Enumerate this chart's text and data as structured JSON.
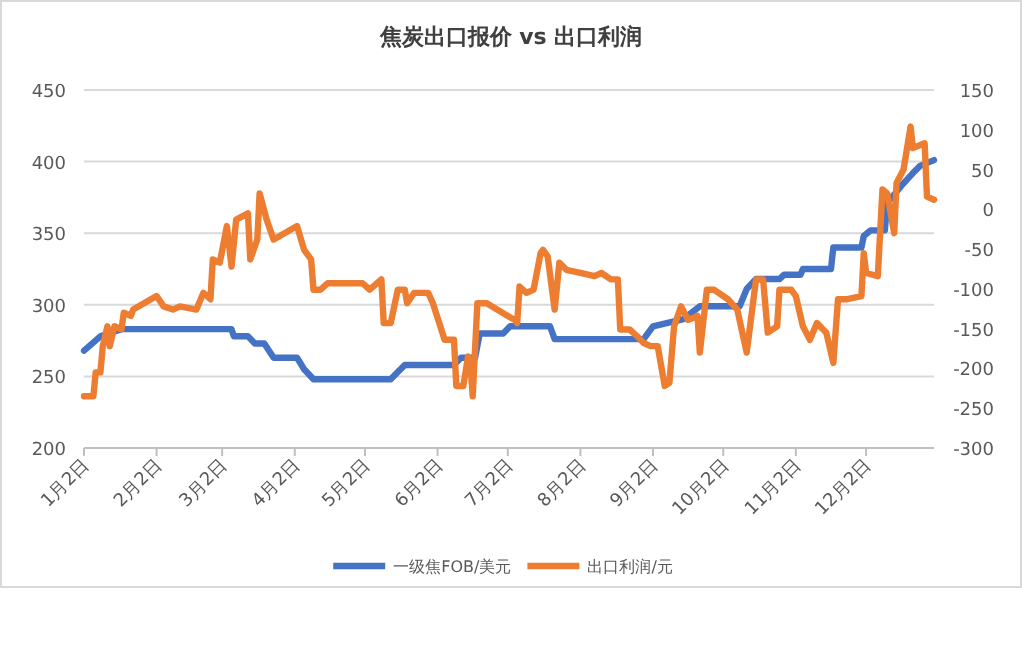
{
  "chart_data": {
    "type": "line",
    "title": "焦炭出口报价 vs 出口利润",
    "xlim": [
      "--01-02",
      "--12-31"
    ],
    "xticks": [
      {
        "value": "--01-02",
        "label": "1月2日"
      },
      {
        "value": "--02-02",
        "label": "2月2日"
      },
      {
        "value": "--03-02",
        "label": "3月2日"
      },
      {
        "value": "--04-02",
        "label": "4月2日"
      },
      {
        "value": "--05-02",
        "label": "5月2日"
      },
      {
        "value": "--06-02",
        "label": "6月2日"
      },
      {
        "value": "--07-02",
        "label": "7月2日"
      },
      {
        "value": "--08-02",
        "label": "8月2日"
      },
      {
        "value": "--09-02",
        "label": "9月2日"
      },
      {
        "value": "--10-02",
        "label": "10月2日"
      },
      {
        "value": "--11-02",
        "label": "11月2日"
      },
      {
        "value": "--12-02",
        "label": "12月2日"
      }
    ],
    "ylim": [
      200,
      450
    ],
    "yticks": [
      200,
      250,
      300,
      350,
      400,
      450
    ],
    "y2lim": [
      -300,
      150
    ],
    "y2ticks": [
      -300,
      -250,
      -200,
      -150,
      -100,
      -50,
      0,
      50,
      100,
      150
    ],
    "grid": "y",
    "legend": "bottom",
    "line_style": "solid",
    "series": [
      {
        "name": "一级焦FOB/美元",
        "color": "#4472c4",
        "axis": "y",
        "x": [
          "--01-02",
          "--01-09",
          "--01-18",
          "--03-06",
          "--03-07",
          "--03-13",
          "--03-16",
          "--03-20",
          "--03-24",
          "--04-03",
          "--04-06",
          "--04-10",
          "--05-13",
          "--05-16",
          "--05-19",
          "--06-09",
          "--06-12",
          "--06-18",
          "--06-20",
          "--06-30",
          "--07-03",
          "--07-20",
          "--07-22",
          "--08-29",
          "--09-02",
          "--09-15",
          "--09-22",
          "--10-09",
          "--10-12",
          "--10-16",
          "--10-26",
          "--10-28",
          "--11-04",
          "--11-05",
          "--11-17",
          "--11-18",
          "--11-30",
          "--12-01",
          "--12-04",
          "--12-10",
          "--12-11",
          "--12-17",
          "--12-22",
          "--12-25",
          "--12-31"
        ],
        "values": [
          268,
          278,
          283,
          283,
          278,
          278,
          273,
          273,
          263,
          263,
          255,
          248,
          248,
          253,
          258,
          258,
          263,
          263,
          280,
          280,
          285,
          285,
          276,
          276,
          285,
          290,
          299,
          299,
          311,
          318,
          318,
          321,
          321,
          325,
          325,
          340,
          340,
          348,
          352,
          352,
          371,
          383,
          392,
          397,
          401
        ]
      },
      {
        "name": "出口利润/元",
        "color": "#ed7d31",
        "axis": "y2",
        "x": [
          "--01-02",
          "--01-06",
          "--01-07",
          "--01-09",
          "--01-10",
          "--01-12",
          "--01-13",
          "--01-15",
          "--01-18",
          "--01-19",
          "--01-22",
          "--01-23",
          "--02-02",
          "--02-05",
          "--02-09",
          "--02-12",
          "--02-19",
          "--02-22",
          "--02-25",
          "--02-26",
          "--03-01",
          "--03-04",
          "--03-06",
          "--03-08",
          "--03-13",
          "--03-14",
          "--03-17",
          "--03-18",
          "--03-21",
          "--03-24",
          "--04-03",
          "--04-06",
          "--04-09",
          "--04-10",
          "--04-13",
          "--04-16",
          "--05-01",
          "--05-04",
          "--05-09",
          "--05-10",
          "--05-13",
          "--05-16",
          "--05-19",
          "--05-20",
          "--05-23",
          "--05-29",
          "--05-31",
          "--06-05",
          "--06-09",
          "--06-10",
          "--06-13",
          "--06-15",
          "--06-16",
          "--06-17",
          "--06-19",
          "--06-23",
          "--07-02",
          "--07-05",
          "--07-06",
          "--07-07",
          "--07-10",
          "--07-13",
          "--07-16",
          "--07-17",
          "--07-19",
          "--07-22",
          "--07-24",
          "--07-27",
          "--08-02",
          "--08-08",
          "--08-11",
          "--08-15",
          "--08-18",
          "--08-19",
          "--08-23",
          "--08-26",
          "--08-29",
          "--09-01",
          "--09-04",
          "--09-07",
          "--09-09",
          "--09-11",
          "--09-14",
          "--09-17",
          "--09-21",
          "--09-22",
          "--09-25",
          "--09-28",
          "--10-04",
          "--10-08",
          "--10-12",
          "--10-16",
          "--10-19",
          "--10-21",
          "--10-25",
          "--10-26",
          "--10-31",
          "--11-02",
          "--11-05",
          "--11-08",
          "--11-11",
          "--11-15",
          "--11-18",
          "--11-20",
          "--11-24",
          "--11-30",
          "--12-01",
          "--12-02",
          "--12-07",
          "--12-09",
          "--12-11",
          "--12-14",
          "--12-15",
          "--12-18",
          "--12-21",
          "--12-22",
          "--12-27",
          "--12-28",
          "--12-31"
        ],
        "values": [
          -235,
          -235,
          -205,
          -205,
          -172,
          -147,
          -172,
          -147,
          -151,
          -130,
          -134,
          -126,
          -109,
          -122,
          -126,
          -122,
          -126,
          -105,
          -113,
          -63,
          -67,
          -21,
          -72,
          -13,
          -5,
          -63,
          -38,
          20,
          -13,
          -38,
          -21,
          -51,
          -63,
          -101,
          -101,
          -93,
          -93,
          -101,
          -88,
          -143,
          -143,
          -101,
          -101,
          -118,
          -105,
          -105,
          -118,
          -164,
          -164,
          -222,
          -222,
          -185,
          -193,
          -235,
          -118,
          -118,
          -134,
          -139,
          -143,
          -97,
          -105,
          -101,
          -55,
          -51,
          -59,
          -126,
          -67,
          -76,
          -80,
          -84,
          -80,
          -88,
          -88,
          -151,
          -151,
          -159,
          -168,
          -172,
          -172,
          -222,
          -218,
          -147,
          -122,
          -139,
          -134,
          -180,
          -101,
          -101,
          -113,
          -126,
          -180,
          -88,
          -88,
          -155,
          -147,
          -101,
          -101,
          -109,
          -147,
          -164,
          -143,
          -155,
          -193,
          -113,
          -113,
          -109,
          -55,
          -80,
          -84,
          25,
          20,
          -30,
          33,
          50,
          104,
          77,
          83,
          16,
          12
        ]
      }
    ]
  }
}
